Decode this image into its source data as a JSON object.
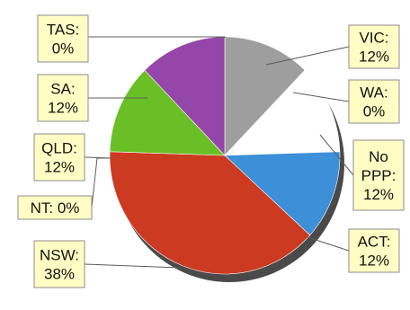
{
  "chart_data": {
    "type": "pie",
    "categories": [
      "VIC",
      "WA",
      "No PPP",
      "ACT",
      "NSW",
      "NT",
      "QLD",
      "SA",
      "TAS"
    ],
    "values": [
      12,
      0,
      12,
      12,
      38,
      0,
      12,
      12,
      0
    ],
    "value_suffix": "%",
    "title": "",
    "legend": "none",
    "colors": [
      "#9e9e9e",
      "#a81e1e",
      "#ffffff",
      "#3d8fd8",
      "#cc3a22",
      "#dddddd",
      "#6bbf26",
      "#9447a8",
      "#9447a8"
    ],
    "labels": [
      {
        "category": "VIC",
        "lines": [
          "VIC:",
          "12%"
        ]
      },
      {
        "category": "WA",
        "lines": [
          "WA:",
          "0%"
        ]
      },
      {
        "category": "No PPP",
        "lines": [
          "No",
          "PPP:",
          "12%"
        ]
      },
      {
        "category": "ACT",
        "lines": [
          "ACT:",
          "12%"
        ]
      },
      {
        "category": "NSW",
        "lines": [
          "NSW:",
          "38%"
        ]
      },
      {
        "category": "NT",
        "lines": [
          "NT: 0%"
        ]
      },
      {
        "category": "QLD",
        "lines": [
          "QLD:",
          "12%"
        ]
      },
      {
        "category": "SA",
        "lines": [
          "SA:",
          "12%"
        ]
      },
      {
        "category": "TAS",
        "lines": [
          "TAS:",
          "0%"
        ]
      }
    ]
  }
}
